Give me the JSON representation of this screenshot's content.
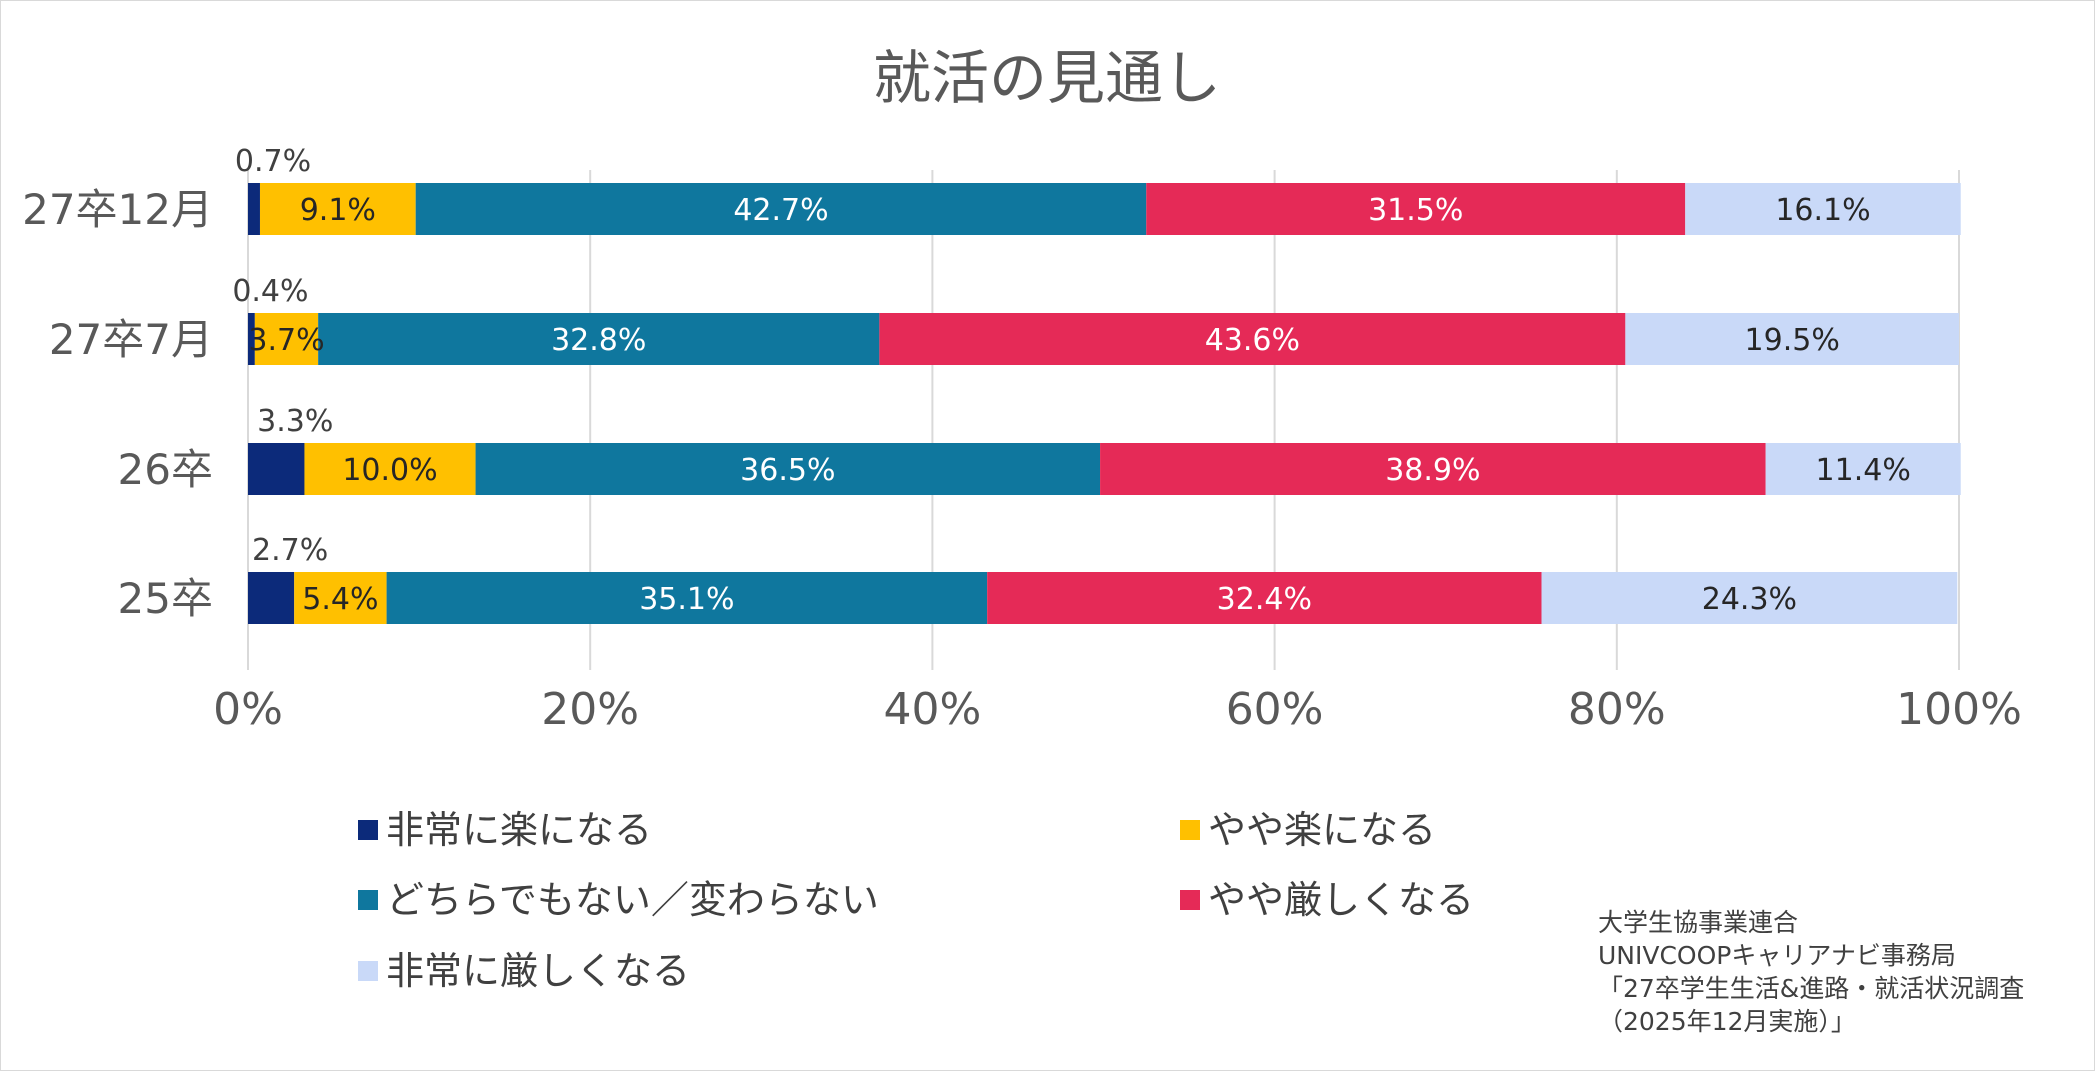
{
  "chart_data": {
    "type": "bar",
    "orientation": "horizontal",
    "stacked": true,
    "title": "就活の見通し",
    "categories": [
      "27卒12月",
      "27卒7月",
      "26卒",
      "25卒"
    ],
    "xlim": [
      0,
      100
    ],
    "ticks": [
      "0%",
      "20%",
      "40%",
      "60%",
      "80%",
      "100%"
    ],
    "grid": true,
    "legend_position": "bottom",
    "series": [
      {
        "name": "非常に楽になる",
        "color": "#0c2a7a",
        "values": [
          0.7,
          0.4,
          3.3,
          2.7
        ],
        "labels": [
          "0.7%",
          "0.4%",
          "3.3%",
          "2.7%"
        ],
        "label_color": "#404040",
        "label_outside": true
      },
      {
        "name": "やや楽になる",
        "color": "#ffc000",
        "values": [
          9.1,
          3.7,
          10.0,
          5.4
        ],
        "labels": [
          "9.1%",
          "3.7%",
          "10.0%",
          "5.4%"
        ],
        "label_color": "#262626"
      },
      {
        "name": "どちらでもない／変わらない",
        "color": "#0f779e",
        "values": [
          42.7,
          32.8,
          36.5,
          35.1
        ],
        "labels": [
          "42.7%",
          "32.8%",
          "36.5%",
          "35.1%"
        ],
        "label_color": "#ffffff"
      },
      {
        "name": "やや厳しくなる",
        "color": "#e52a57",
        "values": [
          31.5,
          43.6,
          38.9,
          32.4
        ],
        "labels": [
          "31.5%",
          "43.6%",
          "38.9%",
          "32.4%"
        ],
        "label_color": "#ffffff"
      },
      {
        "name": "非常に厳しくなる",
        "color": "#c9d9f8",
        "values": [
          16.1,
          19.5,
          11.4,
          24.3
        ],
        "labels": [
          "16.1%",
          "19.5%",
          "11.4%",
          "24.3%"
        ],
        "label_color": "#262626"
      }
    ]
  },
  "source": {
    "lines": [
      "大学生協事業連合",
      "UNIVCOOPキャリアナビ事務局",
      "「27卒学生生活&進路・就活状況調査",
      "（2025年12月実施）」"
    ]
  }
}
